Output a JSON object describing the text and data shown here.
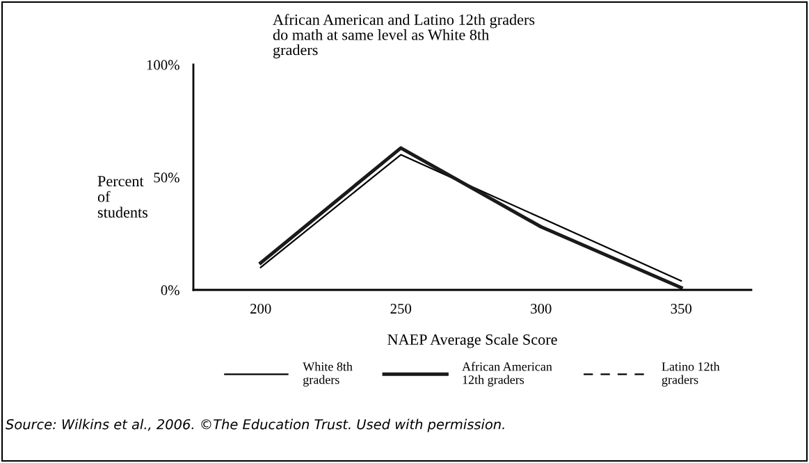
{
  "chart_data": {
    "type": "line",
    "title": "African American and Latino 12th graders\ndo math at same level as White 8th\ngraders",
    "xlabel": "NAEP Average Scale Score",
    "ylabel": "Percent\nof\nstudents",
    "x": [
      200,
      250,
      300,
      350
    ],
    "xlim": [
      176,
      375
    ],
    "xticks": [
      200,
      250,
      300,
      350
    ],
    "ylim": [
      0,
      100
    ],
    "yticks": [
      {
        "value": 0,
        "label": "0%"
      },
      {
        "value": 50,
        "label": "50%"
      },
      {
        "value": 100,
        "label": "100%"
      }
    ],
    "series": [
      {
        "name": "White 8th\ngraders",
        "color": "#000000",
        "values": [
          10,
          60,
          32,
          4
        ],
        "line_style": "solid"
      },
      {
        "name": "African American\n12th graders",
        "color": "#1a1a1a",
        "values": [
          12,
          63,
          28,
          1
        ],
        "line_style": "solid"
      },
      {
        "name": "Latino 12th\ngraders",
        "color": "#000000",
        "values": [
          null,
          null,
          null,
          null
        ],
        "line_style": "dashed"
      }
    ],
    "legend": "bottom",
    "grid": false,
    "annotations": [
      "Source: Wilkins et al., 2006. ©The Education Trust. Used with permission."
    ]
  }
}
